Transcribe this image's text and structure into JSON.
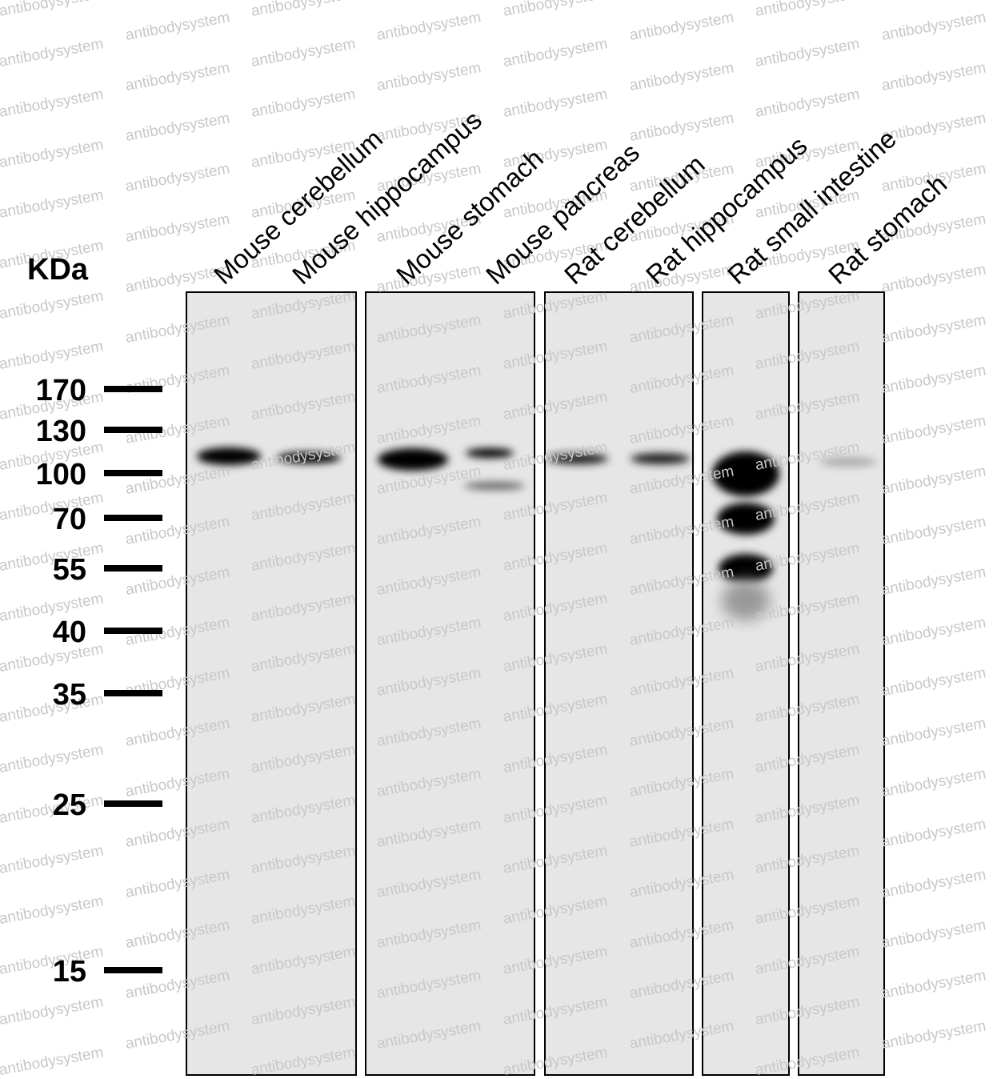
{
  "unit_label": "KDa",
  "markers": [
    "170",
    "130",
    "100",
    "70",
    "55",
    "40",
    "35",
    "25",
    "15"
  ],
  "lanes": [
    "Mouse cerebellum",
    "Mouse hippocampus",
    "Mouse stomach",
    "Mouse pancreas",
    "Rat cerebellum",
    "Rat hippocampus",
    "Rat small intestine",
    "Rat stomach"
  ],
  "watermark": "antibodysystem"
}
